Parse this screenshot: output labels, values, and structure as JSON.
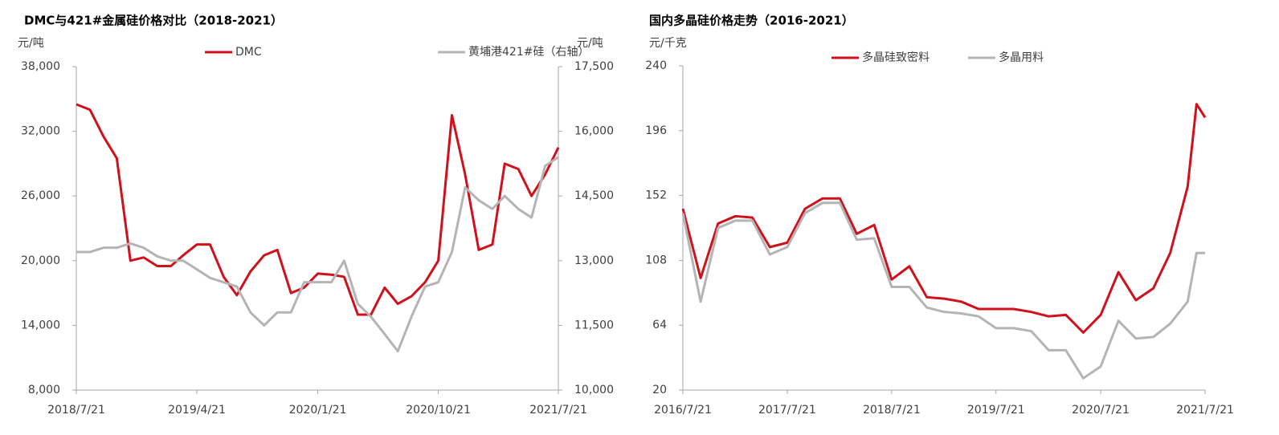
{
  "chart_data": [
    {
      "type": "line",
      "title": "DMC与421#金属硅价格对比（2018-2021）",
      "y_label": "元/吨",
      "y2_label": "元/吨",
      "x": [
        "2018/7/21",
        "2018/8/21",
        "2018/9/21",
        "2018/10/21",
        "2018/11/21",
        "2018/12/21",
        "2019/1/21",
        "2019/2/21",
        "2019/3/21",
        "2019/4/21",
        "2019/5/21",
        "2019/6/21",
        "2019/7/21",
        "2019/8/21",
        "2019/9/21",
        "2019/10/21",
        "2019/11/21",
        "2019/12/21",
        "2020/1/21",
        "2020/2/21",
        "2020/3/21",
        "2020/4/21",
        "2020/5/21",
        "2020/6/21",
        "2020/7/21",
        "2020/8/21",
        "2020/9/21",
        "2020/10/21",
        "2020/11/21",
        "2020/12/21",
        "2021/1/21",
        "2021/2/21",
        "2021/3/21",
        "2021/4/21",
        "2021/5/21",
        "2021/6/21",
        "2021/7/21"
      ],
      "series": [
        {
          "name": "DMC",
          "color": "#d0101b",
          "values": [
            34500,
            34000,
            31500,
            29500,
            20000,
            20300,
            19500,
            19500,
            20500,
            21500,
            21500,
            18500,
            16800,
            19000,
            20500,
            21000,
            17000,
            17500,
            18800,
            18700,
            18500,
            15000,
            15000,
            17500,
            16000,
            16700,
            18000,
            20000,
            33500,
            28000,
            21000,
            21500,
            29000,
            28500,
            26000,
            28000,
            30500
          ]
        },
        {
          "name": "黄埔港421#硅（右轴）",
          "color": "#b4b4b4",
          "axis": "y2",
          "values": [
            13200,
            13200,
            13300,
            13300,
            13400,
            13300,
            13100,
            13000,
            13000,
            12800,
            12600,
            12500,
            12400,
            11800,
            11500,
            11800,
            11800,
            12500,
            12500,
            12500,
            13000,
            12000,
            11700,
            11300,
            10900,
            11700,
            12400,
            12500,
            13200,
            14700,
            14400,
            14200,
            14500,
            14200,
            14000,
            15200,
            15400
          ]
        }
      ],
      "xlim": [
        "2018/7/21",
        "2021/7/21"
      ],
      "xticks": [
        "2018/7/21",
        "2019/4/21",
        "2020/1/21",
        "2020/10/21",
        "2021/7/21"
      ],
      "ylim": [
        8000,
        38000
      ],
      "yticks": [
        {
          "value": 8000,
          "label": "8,000"
        },
        {
          "value": 14000,
          "label": "14,000"
        },
        {
          "value": 20000,
          "label": "20,000"
        },
        {
          "value": 26000,
          "label": "26,000"
        },
        {
          "value": 32000,
          "label": "32,000"
        },
        {
          "value": 38000,
          "label": "38,000"
        }
      ],
      "y2lim": [
        10000,
        17500
      ],
      "y2ticks": [
        {
          "value": 10000,
          "label": "10,000"
        },
        {
          "value": 11500,
          "label": "11,500"
        },
        {
          "value": 13000,
          "label": "13,000"
        },
        {
          "value": 14500,
          "label": "14,500"
        },
        {
          "value": 16000,
          "label": "16,000"
        },
        {
          "value": 17500,
          "label": "17,500"
        }
      ]
    },
    {
      "type": "line",
      "title": "国内多晶硅价格走势（2016-2021）",
      "y_label": "元/千克",
      "x": [
        "2016/7/21",
        "2016/9/21",
        "2016/11/21",
        "2017/1/21",
        "2017/3/21",
        "2017/5/21",
        "2017/7/21",
        "2017/9/21",
        "2017/11/21",
        "2018/1/21",
        "2018/3/21",
        "2018/5/21",
        "2018/7/21",
        "2018/9/21",
        "2018/11/21",
        "2019/1/21",
        "2019/3/21",
        "2019/5/21",
        "2019/7/21",
        "2019/9/21",
        "2019/11/21",
        "2020/1/21",
        "2020/3/21",
        "2020/5/21",
        "2020/7/21",
        "2020/9/21",
        "2020/11/21",
        "2021/1/21",
        "2021/3/21",
        "2021/5/21",
        "2021/6/21",
        "2021/7/21"
      ],
      "series": [
        {
          "name": "多晶硅致密料",
          "color": "#d0101b",
          "values": [
            143,
            96,
            133,
            138,
            137,
            117,
            120,
            143,
            150,
            150,
            126,
            132,
            95,
            104,
            83,
            82,
            80,
            75,
            75,
            75,
            73,
            70,
            71,
            59,
            71,
            100,
            81,
            89,
            113,
            158,
            214,
            205
          ]
        },
        {
          "name": "多晶用料",
          "color": "#b4b4b4",
          "values": [
            140,
            80,
            130,
            135,
            135,
            112,
            117,
            140,
            147,
            147,
            122,
            123,
            90,
            90,
            76,
            73,
            72,
            70,
            62,
            62,
            60,
            47,
            47,
            28,
            36,
            67,
            55,
            56,
            65,
            80,
            113,
            113
          ]
        }
      ],
      "xlim": [
        "2016/7/21",
        "2021/7/21"
      ],
      "xticks": [
        "2016/7/21",
        "2017/7/21",
        "2018/7/21",
        "2019/7/21",
        "2020/7/21",
        "2021/7/21"
      ],
      "ylim": [
        20,
        240
      ],
      "yticks": [
        20,
        64,
        108,
        152,
        196,
        240
      ]
    }
  ]
}
